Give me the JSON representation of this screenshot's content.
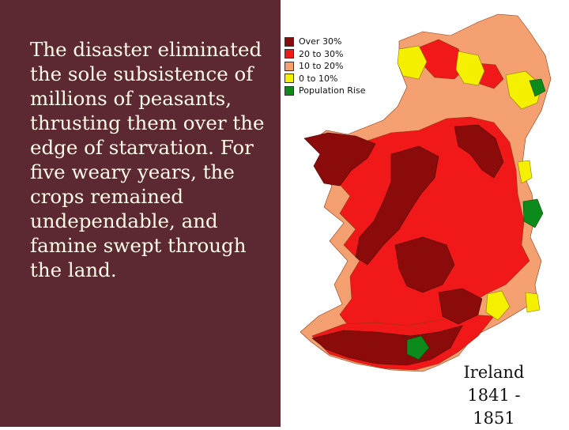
{
  "slide": {
    "body_text": "The disaster eliminated the sole subsistence of millions of peasants, thrusting them over the edge of starvation. For five weary years, the crops remained undependable, and famine swept through the land.",
    "colors": {
      "panel": "#5c2933",
      "text": "#fdfae6"
    }
  },
  "map": {
    "legend": [
      {
        "label": "Over 30%",
        "color": "#8b0a0a"
      },
      {
        "label": "20 to 30%",
        "color": "#f01818"
      },
      {
        "label": "10 to 20%",
        "color": "#f4a070"
      },
      {
        "label": "0 to 10%",
        "color": "#f4f000"
      },
      {
        "label": "Population Rise",
        "color": "#0c8a1c"
      }
    ],
    "caption": {
      "line1": "Ireland",
      "line2": "1841 - 1851"
    }
  }
}
